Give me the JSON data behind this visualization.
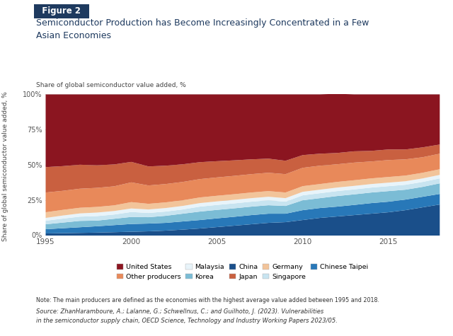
{
  "title_label": "Figure 2",
  "title_line1": "Semiconductor Production has Become Increasingly Concentrated in a Few",
  "title_line2": "Asian Economies",
  "ylabel": "Share of global semiconductor value added, %",
  "note": "Note: The main producers are defined as the economies with the highest average value added between 1995 and 2018.",
  "source_line1": "Source: ZhanHaramboure, A.; Lalanne, G.; Schwellnus, C.; and Guilhoto, J. (2023). Vulnerabilities",
  "source_line2": "in the semiconductor supply chain, OECD Science, Technology and Industry Working Papers 2023/05.",
  "years": [
    1995,
    1996,
    1997,
    1998,
    1999,
    2000,
    2001,
    2002,
    2003,
    2004,
    2005,
    2006,
    2007,
    2008,
    2009,
    2010,
    2011,
    2012,
    2013,
    2014,
    2015,
    2016,
    2017,
    2018
  ],
  "series": {
    "China": [
      1.5,
      1.7,
      1.9,
      2.1,
      2.4,
      2.7,
      3.0,
      3.5,
      4.2,
      5.0,
      6.0,
      7.0,
      8.0,
      9.0,
      9.5,
      11.0,
      12.5,
      13.5,
      14.5,
      15.5,
      16.5,
      18.0,
      20.0,
      22.0
    ],
    "Chinese Taipei": [
      3.0,
      3.5,
      4.0,
      4.5,
      5.0,
      5.5,
      5.5,
      5.5,
      5.8,
      6.0,
      6.2,
      6.3,
      6.5,
      6.5,
      6.0,
      7.0,
      7.0,
      7.0,
      7.2,
      7.5,
      7.5,
      7.5,
      7.5,
      7.5
    ],
    "Korea": [
      3.5,
      4.0,
      4.5,
      4.0,
      4.5,
      5.0,
      4.5,
      5.0,
      5.5,
      6.0,
      6.0,
      6.0,
      6.0,
      6.0,
      5.5,
      7.0,
      7.0,
      7.5,
      7.5,
      7.5,
      7.5,
      7.0,
      7.0,
      7.5
    ],
    "Singapore": [
      2.5,
      2.8,
      3.0,
      3.2,
      3.0,
      3.5,
      3.0,
      3.0,
      3.0,
      3.5,
      3.5,
      3.5,
      3.5,
      3.5,
      3.0,
      3.5,
      3.5,
      3.5,
      3.5,
      3.5,
      3.5,
      3.5,
      3.5,
      3.5
    ],
    "Malaysia": [
      2.0,
      2.2,
      2.3,
      2.5,
      2.5,
      2.5,
      2.5,
      2.5,
      2.5,
      2.5,
      2.5,
      2.5,
      2.5,
      2.5,
      2.5,
      2.5,
      2.5,
      2.5,
      2.5,
      2.5,
      2.5,
      2.5,
      2.5,
      2.5
    ],
    "Germany": [
      4.0,
      4.0,
      4.0,
      4.0,
      4.0,
      4.5,
      4.0,
      4.0,
      4.0,
      4.0,
      4.0,
      4.0,
      4.0,
      4.0,
      4.0,
      4.0,
      4.0,
      4.0,
      4.0,
      4.0,
      4.0,
      4.0,
      4.0,
      4.0
    ],
    "Other producers": [
      14.0,
      13.5,
      13.5,
      13.5,
      13.5,
      14.0,
      13.0,
      13.0,
      13.0,
      13.0,
      13.0,
      13.0,
      13.0,
      13.0,
      13.0,
      13.0,
      13.0,
      12.5,
      12.5,
      12.0,
      12.0,
      11.5,
      11.0,
      11.0
    ],
    "Japan": [
      18.0,
      17.5,
      17.0,
      16.0,
      15.5,
      14.5,
      13.5,
      13.0,
      12.5,
      12.0,
      11.5,
      11.0,
      10.5,
      10.0,
      9.5,
      9.0,
      8.5,
      8.0,
      8.0,
      7.5,
      7.5,
      7.0,
      7.0,
      6.5
    ],
    "United States": [
      51.5,
      50.8,
      49.8,
      50.2,
      49.6,
      47.8,
      51.0,
      50.5,
      49.5,
      48.0,
      47.3,
      46.7,
      46.0,
      45.5,
      47.0,
      43.0,
      42.0,
      42.0,
      40.3,
      40.0,
      39.0,
      39.0,
      37.5,
      35.5
    ]
  },
  "colors": {
    "China": "#1a4f8a",
    "Chinese Taipei": "#2878b8",
    "Korea": "#7bbcd5",
    "Singapore": "#c8e4f0",
    "Malaysia": "#e8f4fa",
    "Germany": "#f2c49a",
    "Other producers": "#e8895a",
    "Japan": "#c96040",
    "United States": "#8b1520"
  },
  "stack_order": [
    "China",
    "Chinese Taipei",
    "Korea",
    "Singapore",
    "Malaysia",
    "Germany",
    "Other producers",
    "Japan",
    "United States"
  ],
  "legend_order": [
    "United States",
    "Other producers",
    "Malaysia",
    "Korea",
    "China",
    "Japan",
    "Germany",
    "Singapore",
    "Chinese Taipei"
  ],
  "ylim": [
    0,
    100
  ],
  "yticks": [
    0,
    25,
    50,
    75,
    100
  ],
  "ytick_labels": [
    "0%",
    "25%",
    "50%",
    "75%",
    "100%"
  ],
  "xticks": [
    1995,
    2000,
    2005,
    2010,
    2015
  ],
  "bg_color": "#ffffff",
  "title_box_color": "#1e3a5f",
  "title_text_color": "#1e3a5f",
  "title_label_color": "#ffffff",
  "grid_color": "#d0d0d0"
}
